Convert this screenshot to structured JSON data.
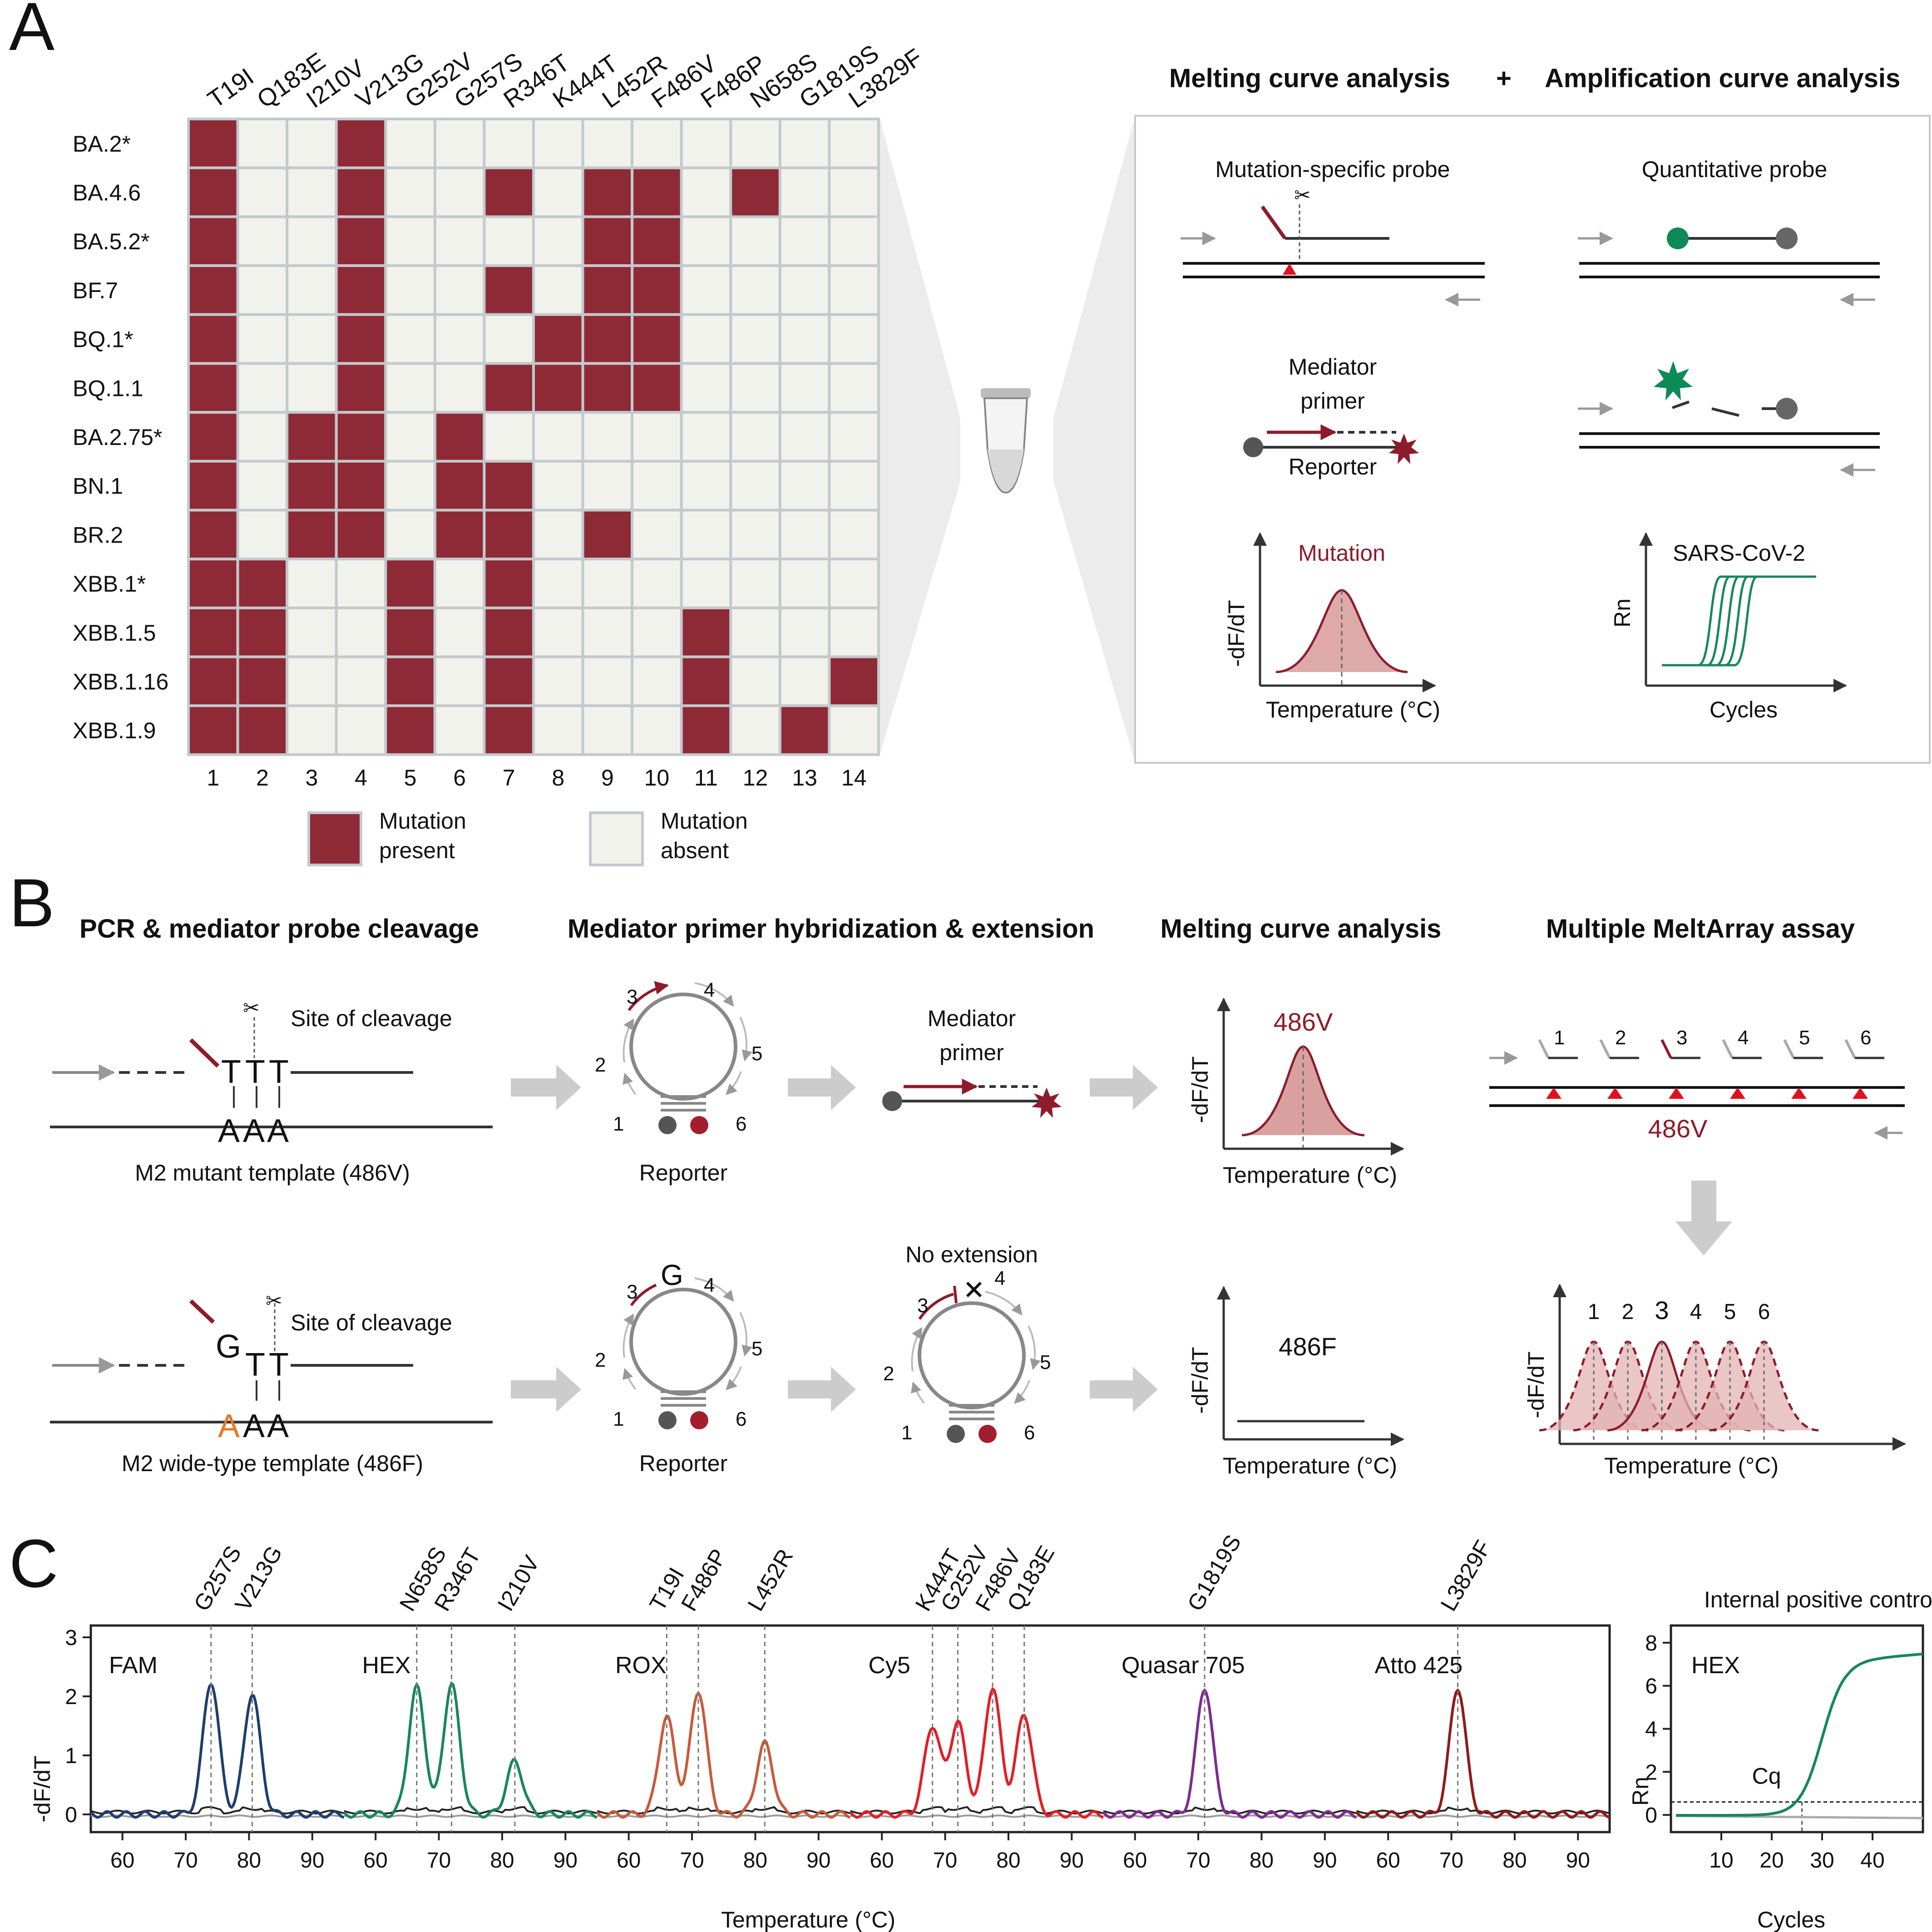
{
  "panel_a": {
    "panel_label": "A",
    "mutations": [
      "T19I",
      "Q183E",
      "I210V",
      "V213G",
      "G252V",
      "G257S",
      "R346T",
      "K444T",
      "L452R",
      "F486V",
      "F486P",
      "N658S",
      "G1819S",
      "L3829F"
    ],
    "column_numbers": [
      "1",
      "2",
      "3",
      "4",
      "5",
      "6",
      "7",
      "8",
      "9",
      "10",
      "11",
      "12",
      "13",
      "14"
    ],
    "variants": [
      "BA.2*",
      "BA.4.6",
      "BA.5.2*",
      "BF.7",
      "BQ.1*",
      "BQ.1.1",
      "BA.2.75*",
      "BN.1",
      "BR.2",
      "XBB.1*",
      "XBB.1.5",
      "XBB.1.16",
      "XBB.1.9"
    ],
    "matrix": [
      [
        1,
        0,
        0,
        1,
        0,
        0,
        0,
        0,
        0,
        0,
        0,
        0,
        0,
        0
      ],
      [
        1,
        0,
        0,
        1,
        0,
        0,
        1,
        0,
        1,
        1,
        0,
        1,
        0,
        0
      ],
      [
        1,
        0,
        0,
        1,
        0,
        0,
        0,
        0,
        1,
        1,
        0,
        0,
        0,
        0
      ],
      [
        1,
        0,
        0,
        1,
        0,
        0,
        1,
        0,
        1,
        1,
        0,
        0,
        0,
        0
      ],
      [
        1,
        0,
        0,
        1,
        0,
        0,
        0,
        1,
        1,
        1,
        0,
        0,
        0,
        0
      ],
      [
        1,
        0,
        0,
        1,
        0,
        0,
        1,
        1,
        1,
        1,
        0,
        0,
        0,
        0
      ],
      [
        1,
        0,
        1,
        1,
        0,
        1,
        0,
        0,
        0,
        0,
        0,
        0,
        0,
        0
      ],
      [
        1,
        0,
        1,
        1,
        0,
        1,
        1,
        0,
        0,
        0,
        0,
        0,
        0,
        0
      ],
      [
        1,
        0,
        1,
        1,
        0,
        1,
        1,
        0,
        1,
        0,
        0,
        0,
        0,
        0
      ],
      [
        1,
        1,
        0,
        0,
        1,
        0,
        1,
        0,
        0,
        0,
        0,
        0,
        0,
        0
      ],
      [
        1,
        1,
        0,
        0,
        1,
        0,
        1,
        0,
        0,
        0,
        1,
        0,
        0,
        0
      ],
      [
        1,
        1,
        0,
        0,
        1,
        0,
        1,
        0,
        0,
        0,
        1,
        0,
        0,
        1
      ],
      [
        1,
        1,
        0,
        0,
        1,
        0,
        1,
        0,
        0,
        0,
        1,
        0,
        1,
        0
      ]
    ],
    "legend": {
      "present_line1": "Mutation",
      "present_line2": "present",
      "absent_line1": "Mutation",
      "absent_line2": "absent"
    },
    "colors": {
      "present": "#8e2a36",
      "absent": "#f2f2ec",
      "grid": "#c3c9cd"
    },
    "box": {
      "melting_title": "Melting curve analysis",
      "plus": "+",
      "amplification_title": "Amplification curve analysis",
      "mutation_probe": "Mutation-specific probe",
      "quantitative_probe": "Quantitative probe",
      "mediator_line1": "Mediator",
      "mediator_line2": "primer",
      "reporter": "Reporter",
      "mutation_label": "Mutation",
      "dfdt": "-dF/dT",
      "temperature": "Temperature (°C)",
      "sars": "SARS-CoV-2",
      "rn": "Rn",
      "cycles": "Cycles"
    }
  },
  "panel_b": {
    "panel_label": "B",
    "headers": [
      "PCR & mediator probe cleavage",
      "Mediator primer hybridization & extension",
      "Melting curve analysis",
      "Multiple MeltArray assay"
    ],
    "site_cleavage": "Site of cleavage",
    "mutant_template": "M2 mutant template (486V)",
    "wild_template": "M2 wide-type template (486F)",
    "reporter": "Reporter",
    "mediator_line1": "Mediator",
    "mediator_line2": "primer",
    "no_extension": "No extension",
    "mutant_allele": "486V",
    "wild_allele": "486F",
    "dfdt": "-dF/dT",
    "temperature": "Temperature (°C)",
    "letters": {
      "T": "T",
      "A": "A",
      "G": "G"
    },
    "loop_numbers": [
      "1",
      "2",
      "3",
      "4",
      "5",
      "6"
    ],
    "array_numbers": [
      "1",
      "2",
      "3",
      "4",
      "5",
      "6"
    ],
    "array_target": "486V"
  },
  "panel_c": {
    "panel_label": "C",
    "ylabel": "-dF/dT",
    "xlabel": "Temperature (°C)",
    "y_ticks": [
      "0",
      "1",
      "2",
      "3"
    ],
    "x_ticks": [
      "60",
      "70",
      "80",
      "90"
    ],
    "channels": [
      {
        "name": "FAM",
        "color": "#1f3e6e",
        "peaks": [
          {
            "label": "G257S",
            "temp": 74,
            "height": 2.25
          },
          {
            "label": "V213G",
            "temp": 80.5,
            "height": 2.05
          }
        ]
      },
      {
        "name": "HEX",
        "color": "#17875c",
        "peaks": [
          {
            "label": "N658S",
            "temp": 66.5,
            "height": 2.15
          },
          {
            "label": "R346T",
            "temp": 72,
            "height": 2.2
          },
          {
            "label": "I210V",
            "temp": 82,
            "height": 0.9
          }
        ]
      },
      {
        "name": "ROX",
        "color": "#c85a3a",
        "peaks": [
          {
            "label": "T19I",
            "temp": 66,
            "height": 1.65
          },
          {
            "label": "F486P",
            "temp": 71,
            "height": 2.1
          },
          {
            "label": "L452R",
            "temp": 81.5,
            "height": 1.2
          }
        ]
      },
      {
        "name": "Cy5",
        "color": "#e31e24",
        "peaks": [
          {
            "label": "K444T",
            "temp": 68,
            "height": 1.5
          },
          {
            "label": "G252V",
            "temp": 72,
            "height": 1.55
          },
          {
            "label": "F486V",
            "temp": 77.5,
            "height": 2.15
          },
          {
            "label": "Q183E",
            "temp": 82.5,
            "height": 1.7
          }
        ]
      },
      {
        "name": "Quasar 705",
        "color": "#7b2d8e",
        "peaks": [
          {
            "label": "G1819S",
            "temp": 71,
            "height": 2.15
          }
        ]
      },
      {
        "name": "Atto 425",
        "color": "#8e1b1b",
        "peaks": [
          {
            "label": "L3829F",
            "temp": 71,
            "height": 2.15
          }
        ]
      }
    ],
    "ipc": {
      "title": "Internal positive control",
      "channel": "HEX",
      "ylabel": "Rn",
      "xlabel": "Cycles",
      "cq_label": "Cq",
      "y_ticks": [
        "0",
        "2",
        "4",
        "6",
        "8"
      ],
      "x_ticks": [
        "10",
        "20",
        "30",
        "40"
      ],
      "threshold": 0.6,
      "cq": 26,
      "plateau": 7.2,
      "color": "#17875c"
    }
  }
}
